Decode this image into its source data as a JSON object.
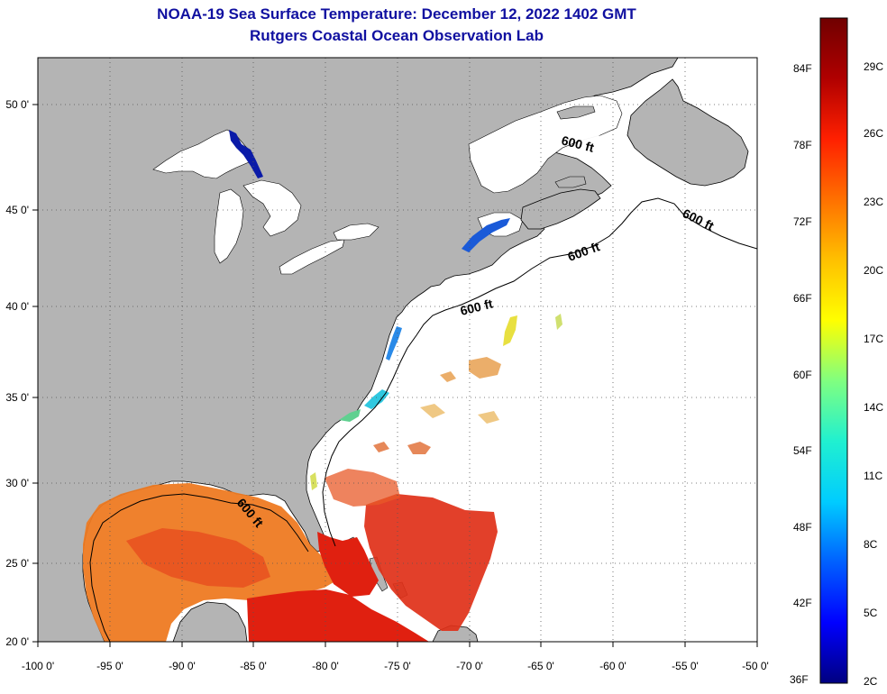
{
  "title": {
    "line1": "NOAA-19 Sea Surface Temperature:  December 12, 2022 1402 GMT",
    "line2": "Rutgers Coastal Ocean Observation Lab"
  },
  "map": {
    "lon_ticks": [
      "-100 0'",
      "-95 0'",
      "-90 0'",
      "-85 0'",
      "-80 0'",
      "-75 0'",
      "-70 0'",
      "-65 0'",
      "-60 0'",
      "-55 0'",
      "-50 0'"
    ],
    "lat_ticks": [
      "50 0'",
      "45 0'",
      "40 0'",
      "35 0'",
      "30 0'",
      "25 0'",
      "20 0'"
    ],
    "contour_label": "600 ft",
    "colors": {
      "land": "#b4b4b4",
      "ocean_cloud": "#ffffff",
      "grid": "#555555",
      "warm": "#e02010",
      "orange": "#ee7a22",
      "cold_lake": "#0a1aa8"
    }
  },
  "colorbar": {
    "fahrenheit_labels": [
      "84F",
      "78F",
      "72F",
      "66F",
      "60F",
      "54F",
      "48F",
      "42F",
      "36F"
    ],
    "celsius_labels": [
      "29C",
      "26C",
      "23C",
      "20C",
      "17C",
      "14C",
      "11C",
      "8C",
      "5C",
      "2C"
    ],
    "gradient": [
      "#000080",
      "#0000ff",
      "#0060ff",
      "#00ccff",
      "#20f0d0",
      "#80ff80",
      "#ffff00",
      "#ffc000",
      "#ff7000",
      "#ff2000",
      "#b00000",
      "#700000"
    ]
  }
}
